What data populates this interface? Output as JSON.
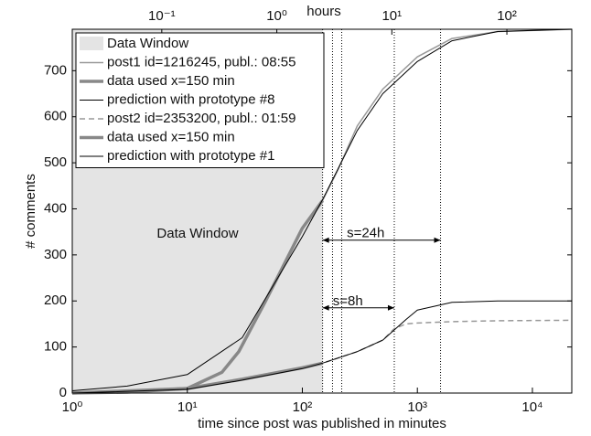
{
  "chart_data": {
    "type": "line",
    "xlabel": "time since post was published in minutes",
    "ylabel": "# comments",
    "x2label": "hours",
    "xscale": "log",
    "xlim": [
      1,
      22000
    ],
    "ylim": [
      0,
      790
    ],
    "x2lim": [
      0.016667,
      366.67
    ],
    "xticks": [
      {
        "value": 1,
        "label": "10⁰"
      },
      {
        "value": 10,
        "label": "10¹"
      },
      {
        "value": 100,
        "label": "10²"
      },
      {
        "value": 1000,
        "label": "10³"
      },
      {
        "value": 10000,
        "label": "10⁴"
      }
    ],
    "x2ticks": [
      {
        "value": 0.1,
        "label": "10⁻¹"
      },
      {
        "value": 1,
        "label": "10⁰"
      },
      {
        "value": 10,
        "label": "10¹"
      },
      {
        "value": 100,
        "label": "10²"
      }
    ],
    "yticks": [
      0,
      100,
      200,
      300,
      400,
      500,
      600,
      700
    ],
    "shade": {
      "name": "Data Window",
      "xlim": [
        1,
        150
      ],
      "color": "#e4e4e4"
    },
    "vlines": [
      150,
      183,
      220,
      630,
      1590
    ],
    "annotations": [
      {
        "text": "Data Window"
      },
      {
        "text": "s=24h",
        "from": 150,
        "to": 1590,
        "y": 332
      },
      {
        "text": "s=8h",
        "from": 150,
        "to": 630,
        "y": 185
      }
    ],
    "series": [
      {
        "name": "post1 id=1216245, publ.: 08:55",
        "color": "#999999",
        "width": 1.5,
        "x": [
          1,
          3,
          10,
          20,
          28,
          48,
          100,
          150,
          200,
          300,
          500,
          1000,
          2000,
          5000,
          22000
        ],
        "values": [
          0,
          2,
          10,
          45,
          90,
          200,
          358,
          418,
          480,
          580,
          660,
          730,
          770,
          785,
          790
        ]
      },
      {
        "name": "data used x=150 min",
        "color": "#888888",
        "width": 3.5,
        "x": [
          1,
          3,
          10,
          20,
          28,
          48,
          100,
          150
        ],
        "values": [
          0,
          2,
          10,
          45,
          90,
          200,
          358,
          418
        ]
      },
      {
        "name": "prediction with prototype #8",
        "color": "#000000",
        "width": 1,
        "x": [
          1,
          3,
          10,
          30,
          100,
          150,
          300,
          500,
          1000,
          2000,
          5000,
          22000
        ],
        "values": [
          5,
          15,
          40,
          120,
          340,
          420,
          570,
          650,
          720,
          765,
          785,
          790
        ]
      },
      {
        "name": "post2 id=2353200, publ.: 01:59",
        "color": "#999999",
        "width": 1.5,
        "dash": "6,4",
        "x": [
          1,
          10,
          30,
          100,
          150,
          300,
          500,
          630,
          800,
          1000,
          2000,
          5000,
          22000
        ],
        "values": [
          0,
          10,
          30,
          55,
          65,
          90,
          115,
          140,
          150,
          152,
          155,
          157,
          158
        ]
      },
      {
        "name": "data used x=150 min",
        "color": "#888888",
        "width": 3.5,
        "x": [
          1,
          10,
          30,
          100,
          150
        ],
        "values": [
          0,
          10,
          30,
          55,
          65
        ]
      },
      {
        "name": "prediction with prototype #1",
        "color": "#000000",
        "width": 1,
        "x": [
          1,
          10,
          30,
          100,
          150,
          300,
          500,
          800,
          1000,
          2000,
          5000,
          22000
        ],
        "values": [
          0,
          8,
          28,
          53,
          65,
          90,
          115,
          160,
          180,
          197,
          200,
          200
        ]
      }
    ]
  }
}
